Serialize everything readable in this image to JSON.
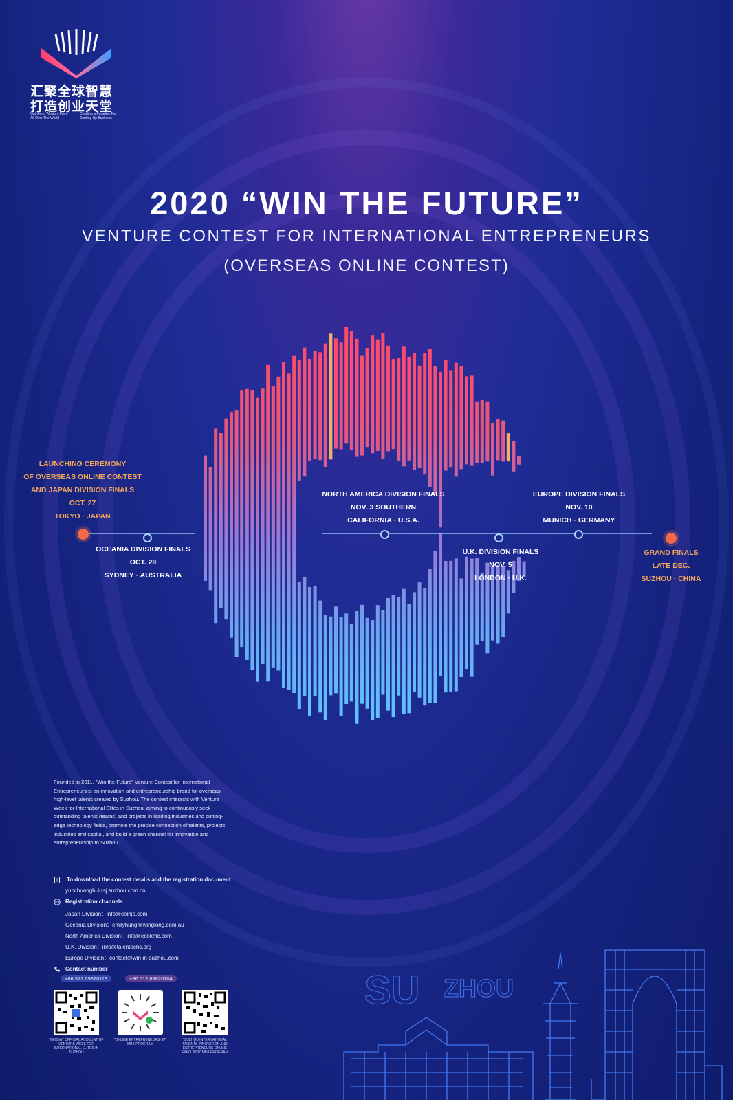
{
  "logo": {
    "line1": "汇聚全球智慧",
    "line2": "打造创业天堂",
    "caption_left": "Gathering Wisdom From All Over The World",
    "caption_right": "Creating a Paradise For Starting Up Business"
  },
  "header": {
    "title": "2020 “WIN THE FUTURE”",
    "subtitle": "VENTURE CONTEST FOR INTERNATIONAL ENTREPRENEURS",
    "subtitle2": "(OVERSEAS ONLINE CONTEST)"
  },
  "timeline": [
    {
      "id": "launch",
      "lines": [
        "LAUNCHING CEREMONY",
        "OF OVERSEAS ONLINE CONTEST",
        "AND JAPAN DIVISION FINALS",
        "OCT. 27",
        "TOKYO · JAPAN"
      ]
    },
    {
      "id": "oceania",
      "lines": [
        "OCEANIA DIVISION FINALS",
        "OCT. 29",
        "SYDNEY · AUSTRALIA"
      ]
    },
    {
      "id": "north-america",
      "lines": [
        "NORTH AMERICA DIVISION FINALS",
        "NOV. 3 SOUTHERN",
        "CALIFORNIA · U.S.A."
      ]
    },
    {
      "id": "uk",
      "lines": [
        "U.K. DIVISION FINALS",
        "NOV. 5",
        "LONDON · U.K."
      ]
    },
    {
      "id": "europe",
      "lines": [
        "EUROPE DIVISION FINALS",
        "NOV. 10",
        "MUNICH · GERMANY"
      ]
    },
    {
      "id": "grand",
      "lines": [
        "GRAND FINALS",
        "LATE DEC.",
        "SUZHOU · CHINA"
      ]
    }
  ],
  "description": "Founded in 2011, \"Win the Future\" Venture Contest for International Entrepreneurs is an innovation and entrepreneurship brand for overseas high-level talents created by Suzhou. The contest interacts with Venture Week for International Elites in Suzhou, aiming to continuously seek outstanding talents (teams) and projects in leading industries and cutting-edge technology fields, promote the precise connection of talents, projects, industries and capital, and build a green channel for innovation and entrepreneurship to Suzhou.",
  "download": {
    "label": "To download the contest details and the registration document",
    "url": "yunchuanghui.rsj.suzhou.com.cn"
  },
  "registration": {
    "label": "Registration channels",
    "channels": [
      "Japan Division：info@ceinjp.com",
      "Oceania Division：emilyhung@winglong.com.au",
      "North America Division：info@ecokmc.com",
      "U.K. Division：info@talentechs.org",
      "Europe Division：contact@win-in-suzhou.com"
    ]
  },
  "contact": {
    "label": "Contact number",
    "phones": [
      "+86 512 69820119",
      "+86 512 69820104"
    ]
  },
  "qr_codes": [
    {
      "caption": "WECHAT OFFICIAL ACCOUNT OF VENTURE WEEK FOR INTERNATIONAL ELITES IN SUZHOU"
    },
    {
      "caption": "\"ONLINE ENTREPRENEURSHIP\" MINI-PROGRAM"
    },
    {
      "caption": "\"SUZHOU INTERNATIONAL TALENTS INNOVATION AND ENTREPRENEURS ONLINE EXPO 2020\" MINI-PROGRAM"
    }
  ],
  "skyline": {
    "word1": "SU",
    "word2": "ZHOU"
  },
  "colors": {
    "accent_orange": "#f4a65a",
    "dot_red": "#f06a4a",
    "background_top": "#6b3aa6",
    "background_bottom": "#0f1c6b"
  }
}
